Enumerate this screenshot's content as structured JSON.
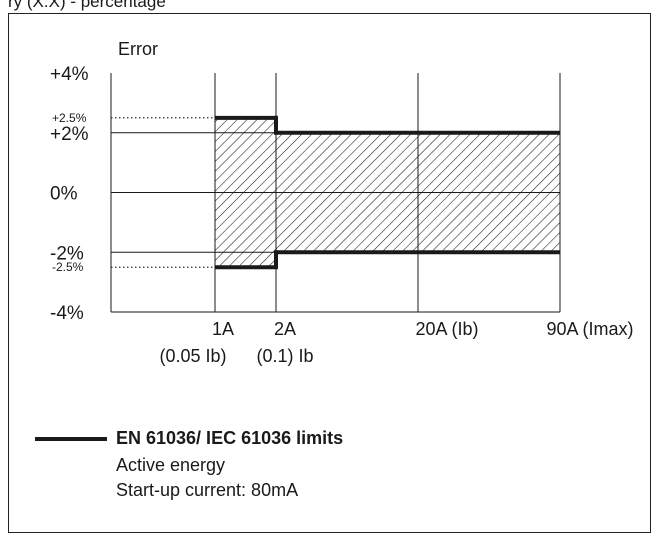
{
  "header_fragment": "ry (X.X) - percentage",
  "chart_data": {
    "type": "area",
    "ylabel": "Error",
    "y_ticks": [
      {
        "label": "+4%",
        "value": 4,
        "size": "large"
      },
      {
        "label": "+2.5%",
        "value": 2.5,
        "size": "small"
      },
      {
        "label": "+2%",
        "value": 2,
        "size": "large"
      },
      {
        "label": "0%",
        "value": 0,
        "size": "large"
      },
      {
        "label": "-2%",
        "value": -2,
        "size": "large"
      },
      {
        "label": "-2.5%",
        "value": -2.5,
        "size": "small"
      },
      {
        "label": "-4%",
        "value": -4,
        "size": "large"
      }
    ],
    "x_categories": [
      {
        "label": "1A",
        "sub": "(0.05 Ib)"
      },
      {
        "label": "2A",
        "sub": "(0.1) Ib"
      },
      {
        "label": "20A (Ib)",
        "sub": ""
      },
      {
        "label": "90A (Imax)",
        "sub": ""
      }
    ],
    "ylim": [
      -4,
      4
    ],
    "limit_series": [
      {
        "from": "1A",
        "to": "2A",
        "upper": 2.5,
        "lower": -2.5
      },
      {
        "from": "2A",
        "to": "90A (Imax)",
        "upper": 2,
        "lower": -2
      }
    ],
    "grid": true
  },
  "legend": {
    "title": "EN 61036/ IEC 61036 limits",
    "lines": [
      "Active energy",
      "Start-up current: 80mA"
    ]
  }
}
